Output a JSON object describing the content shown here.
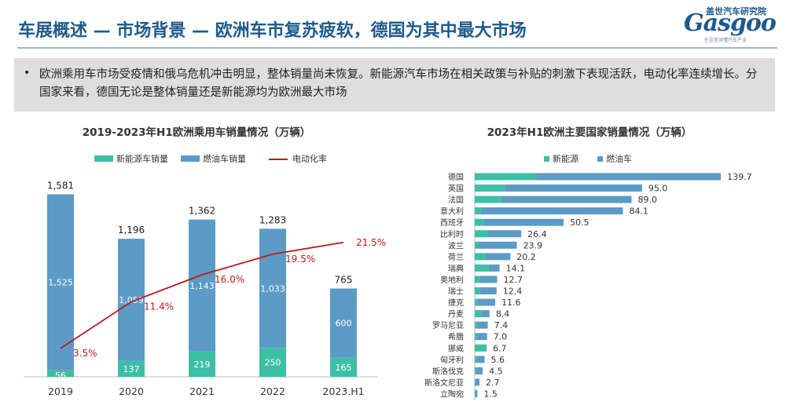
{
  "header": {
    "title": "车展概述 — 市场背景 — 欧洲车市复苏疲软，德国为其中最大市场",
    "logo_cn": "盖世汽车研究院",
    "logo_en": "Gasgoo",
    "logo_sub": "在这里读懂汽车产业"
  },
  "summary": {
    "bullet": "•",
    "text": "欧洲乘用车市场受疫情和俄乌危机冲击明显，整体销量尚未恢复。新能源汽车市场在相关政策与补贴的刺激下表现活跃，电动化率连续增长。分国家来看，德国无论是整体销量还是新能源均为欧洲最大市场"
  },
  "colors": {
    "nev": "#3dbfa6",
    "ice": "#5b9bc5",
    "rate": "#c4161c"
  },
  "chart_data": [
    {
      "type": "bar",
      "title": "2019-2023年H1欧洲乘用车销量情况（万辆）",
      "categories": [
        "2019",
        "2020",
        "2021",
        "2022",
        "2023.H1"
      ],
      "stacked": true,
      "series": [
        {
          "name": "新能源车销量",
          "values": [
            56,
            137,
            219,
            250,
            165
          ]
        },
        {
          "name": "燃油车销量",
          "values": [
            1525,
            1059,
            1143,
            1033,
            600
          ]
        }
      ],
      "totals": [
        "1,581",
        "1,196",
        "1,362",
        "1,283",
        "765"
      ],
      "value_labels": {
        "新能源车销量": [
          "56",
          "137",
          "219",
          "250",
          "165"
        ],
        "燃油车销量": [
          "1,525",
          "1,059",
          "1,143",
          "1,033",
          "600"
        ]
      },
      "line": {
        "name": "电动化率",
        "values": [
          3.5,
          11.4,
          16.0,
          19.5,
          21.5
        ],
        "labels": [
          "3.5%",
          "11.4%",
          "16.0%",
          "19.5%",
          "21.5%"
        ]
      },
      "ylim": [
        0,
        1700
      ],
      "legend_position": "top"
    },
    {
      "type": "bar",
      "orientation": "horizontal",
      "stacked": true,
      "title": "2023年H1欧洲主要国家销量情况（万辆）",
      "categories": [
        "德国",
        "英国",
        "法国",
        "意大利",
        "西班牙",
        "比利时",
        "波兰",
        "荷兰",
        "瑞典",
        "奥地利",
        "瑞士",
        "捷克",
        "丹麦",
        "罗马尼亚",
        "希腊",
        "挪威",
        "匈牙利",
        "斯洛伐克",
        "斯洛文尼亚",
        "立陶宛"
      ],
      "totals": [
        139.7,
        95.0,
        89.0,
        84.1,
        50.5,
        26.4,
        23.9,
        20.2,
        14.1,
        12.7,
        12.4,
        11.6,
        8.4,
        7.4,
        7.0,
        6.7,
        5.6,
        4.5,
        2.7,
        1.5
      ],
      "total_labels": [
        "139.7",
        "95.0",
        "89.0",
        "84.1",
        "50.5",
        "26.4",
        "23.9",
        "20.2",
        "14.1",
        "12.7",
        "12.4",
        "11.6",
        "8.4",
        "7.4",
        "7.0",
        "6.7",
        "5.6",
        "4.5",
        "2.7",
        "1.5"
      ],
      "series": [
        {
          "name": "新能源",
          "values": [
            35,
            17,
            15,
            4,
            5,
            7,
            2,
            6,
            8,
            3,
            3,
            1,
            4,
            1,
            1,
            6,
            1,
            0.5,
            0.3,
            0.2
          ]
        },
        {
          "name": "燃油车",
          "values": [
            104.7,
            78.0,
            74.0,
            80.1,
            45.5,
            19.4,
            21.9,
            14.2,
            6.1,
            9.7,
            9.4,
            10.6,
            4.4,
            6.4,
            6.0,
            0.7,
            4.6,
            4.0,
            2.4,
            1.3
          ]
        }
      ],
      "xlim": [
        0,
        145
      ],
      "legend_position": "top-left"
    }
  ]
}
